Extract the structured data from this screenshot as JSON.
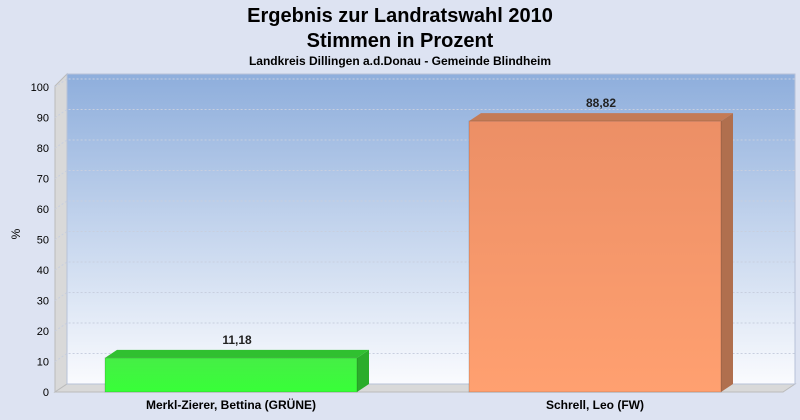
{
  "chart_data": {
    "type": "bar",
    "title": "Ergebnis zur Landratswahl 2010",
    "title2": "Stimmen in Prozent",
    "subtitle": "Landkreis Dillingen a.d.Donau - Gemeinde Blindheim",
    "ylabel": "%",
    "ylim": [
      0,
      100
    ],
    "yticks": [
      0,
      10,
      20,
      30,
      40,
      50,
      60,
      70,
      80,
      90,
      100
    ],
    "categories": [
      "Merkl-Zierer, Bettina (GRÜNE)",
      "Schrell, Leo (FW)"
    ],
    "values": [
      11.18,
      88.82
    ],
    "value_labels": [
      "11,18",
      "88,82"
    ],
    "colors": [
      "#3cf03c",
      "#f59a6c"
    ],
    "grid": true
  }
}
